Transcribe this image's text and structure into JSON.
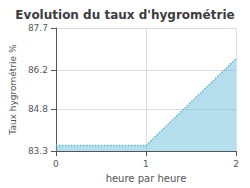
{
  "chart_data": {
    "type": "area",
    "title": "Evolution du taux d'hygrométrie",
    "xlabel": "heure par heure",
    "ylabel": "Taux hygrométrie %",
    "x": [
      0,
      1,
      2
    ],
    "values": [
      83.5,
      83.5,
      86.6
    ],
    "xlim": [
      0,
      2
    ],
    "xticks": [
      0,
      1,
      2
    ],
    "ylim": [
      83.3,
      87.7
    ],
    "yticks": [
      83.3,
      84.8,
      86.2,
      87.7
    ],
    "color": "#5bb8d4",
    "line_style": "dotted",
    "grid": true
  }
}
